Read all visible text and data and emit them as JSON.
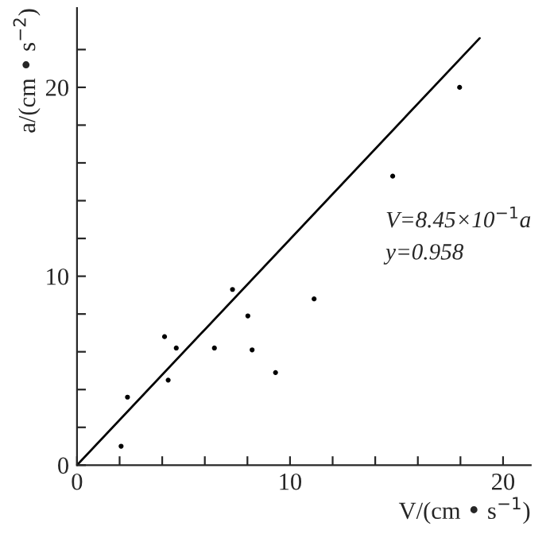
{
  "chart_data": {
    "type": "scatter",
    "xlabel": "V/(cm • s$^{−1}$)",
    "ylabel": "a/(cm • s$^{−2}$)",
    "x": [
      2.07,
      2.37,
      4.11,
      4.28,
      4.66,
      6.45,
      7.3,
      8.02,
      8.22,
      9.32,
      11.13,
      14.82,
      17.96
    ],
    "series": [
      {
        "color": "#000000",
        "marker": "circle",
        "values": [
          1.0,
          3.6,
          6.8,
          4.5,
          6.2,
          6.2,
          9.3,
          7.9,
          6.1,
          4.9,
          8.8,
          15.3,
          20.0
        ]
      },
      {
        "type": "line",
        "color": "#000000",
        "marker": "none",
        "line_style": "solid",
        "x": [
          0,
          18.9
        ],
        "values": [
          0,
          22.6
        ]
      }
    ],
    "xlim": [
      0,
      21.3
    ],
    "ylim": [
      0,
      24.2
    ],
    "xticks": [
      0,
      {
        "value": 2,
        "label": null
      },
      {
        "value": 4,
        "label": null
      },
      {
        "value": 6,
        "label": null
      },
      {
        "value": 8,
        "label": null
      },
      10,
      {
        "value": 12,
        "label": null
      },
      {
        "value": 14,
        "label": null
      },
      {
        "value": 16,
        "label": null
      },
      {
        "value": 18,
        "label": null
      },
      20
    ],
    "yticks": [
      0,
      {
        "value": 2,
        "label": null
      },
      {
        "value": 4,
        "label": null
      },
      {
        "value": 6,
        "label": null
      },
      {
        "value": 8,
        "label": null
      },
      10,
      {
        "value": 12,
        "label": null
      },
      {
        "value": 14,
        "label": null
      },
      {
        "value": 16,
        "label": null
      },
      {
        "value": 18,
        "label": null
      },
      20,
      {
        "value": 22,
        "label": null
      }
    ],
    "annotations": [
      "V=8.45×10$^{−1}$a",
      "y=0.958"
    ],
    "grid": false,
    "legend": false
  }
}
